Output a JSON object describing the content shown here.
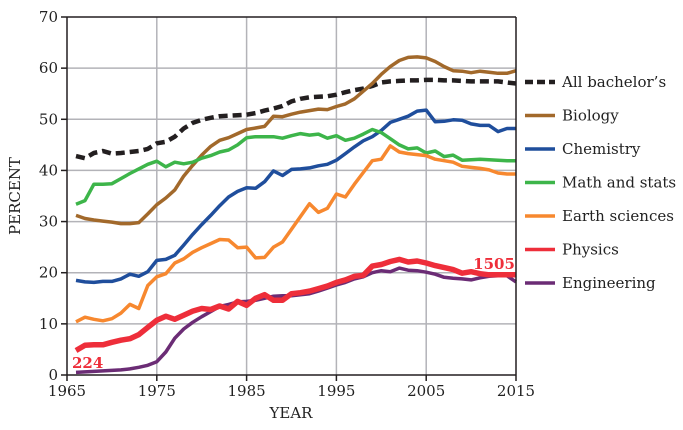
{
  "chart_data": {
    "type": "line",
    "title": "",
    "xlabel": "YEAR",
    "ylabel": "PERCENT",
    "xlim": [
      1965,
      2015
    ],
    "ylim": [
      0,
      70
    ],
    "xticks": [
      1965,
      1975,
      1985,
      1995,
      2005,
      2015
    ],
    "yticks": [
      0,
      10,
      20,
      30,
      40,
      50,
      60,
      70
    ],
    "grid": true,
    "legend": "right",
    "series": [
      {
        "name": "All bachelor’s",
        "color": "#231f20",
        "dashed": true,
        "x": [
          1966,
          1967,
          1968,
          1969,
          1970,
          1971,
          1972,
          1973,
          1974,
          1975,
          1976,
          1977,
          1978,
          1979,
          1980,
          1981,
          1982,
          1983,
          1984,
          1985,
          1986,
          1987,
          1988,
          1989,
          1990,
          1991,
          1992,
          1993,
          1994,
          1995,
          1996,
          1997,
          1998,
          1999,
          2000,
          2001,
          2002,
          2003,
          2004,
          2005,
          2006,
          2007,
          2008,
          2009,
          2010,
          2011,
          2012,
          2013,
          2014,
          2015
        ],
        "y": [
          42.8,
          42.4,
          43.4,
          43.8,
          43.3,
          43.4,
          43.6,
          43.8,
          44.2,
          45.3,
          45.6,
          46.6,
          48.2,
          49.3,
          49.9,
          50.3,
          50.6,
          50.7,
          50.8,
          50.9,
          51.2,
          51.7,
          52.1,
          52.6,
          53.5,
          54.0,
          54.3,
          54.4,
          54.5,
          54.8,
          55.3,
          55.7,
          56.0,
          56.5,
          57.2,
          57.4,
          57.5,
          57.6,
          57.6,
          57.7,
          57.7,
          57.6,
          57.6,
          57.5,
          57.4,
          57.4,
          57.4,
          57.4,
          57.2,
          57.0
        ]
      },
      {
        "name": "Biology",
        "color": "#a2692b",
        "dashed": false,
        "x": [
          1966,
          1967,
          1968,
          1969,
          1970,
          1971,
          1972,
          1973,
          1974,
          1975,
          1976,
          1977,
          1978,
          1979,
          1980,
          1981,
          1982,
          1983,
          1984,
          1985,
          1986,
          1987,
          1988,
          1989,
          1990,
          1991,
          1992,
          1993,
          1994,
          1995,
          1996,
          1997,
          1998,
          1999,
          2000,
          2001,
          2002,
          2003,
          2004,
          2005,
          2006,
          2007,
          2008,
          2009,
          2010,
          2011,
          2012,
          2013,
          2014,
          2015
        ],
        "y": [
          31.2,
          30.6,
          30.3,
          30.1,
          29.9,
          29.6,
          29.6,
          29.8,
          31.5,
          33.3,
          34.6,
          36.2,
          38.9,
          41.0,
          43.0,
          44.7,
          45.9,
          46.4,
          47.2,
          48.0,
          48.3,
          48.6,
          50.6,
          50.5,
          51.0,
          51.4,
          51.7,
          52.0,
          51.9,
          52.5,
          53.0,
          54.0,
          55.5,
          57.0,
          58.8,
          60.3,
          61.5,
          62.1,
          62.2,
          62.0,
          61.3,
          60.3,
          59.5,
          59.4,
          59.1,
          59.4,
          59.2,
          59.0,
          59.0,
          59.5
        ]
      },
      {
        "name": "Chemistry",
        "color": "#1f4e9c",
        "dashed": false,
        "x": [
          1966,
          1967,
          1968,
          1969,
          1970,
          1971,
          1972,
          1973,
          1974,
          1975,
          1976,
          1977,
          1978,
          1979,
          1980,
          1981,
          1982,
          1983,
          1984,
          1985,
          1986,
          1987,
          1988,
          1989,
          1990,
          1991,
          1992,
          1993,
          1994,
          1995,
          1996,
          1997,
          1998,
          1999,
          2000,
          2001,
          2002,
          2003,
          2004,
          2005,
          2006,
          2007,
          2008,
          2009,
          2010,
          2011,
          2012,
          2013,
          2014,
          2015
        ],
        "y": [
          18.5,
          18.2,
          18.1,
          18.3,
          18.3,
          18.8,
          19.7,
          19.3,
          20.2,
          22.4,
          22.6,
          23.4,
          25.4,
          27.5,
          29.4,
          31.2,
          33.1,
          34.8,
          35.9,
          36.6,
          36.5,
          37.8,
          39.9,
          39.0,
          40.2,
          40.3,
          40.5,
          40.9,
          41.2,
          42.0,
          43.3,
          44.6,
          45.8,
          46.6,
          47.8,
          49.4,
          50.0,
          50.6,
          51.6,
          51.8,
          49.5,
          49.6,
          49.9,
          49.8,
          49.1,
          48.8,
          48.8,
          47.6,
          48.2,
          48.2
        ]
      },
      {
        "name": "Math and stats",
        "color": "#3db54a",
        "dashed": false,
        "x": [
          1966,
          1967,
          1968,
          1969,
          1970,
          1971,
          1972,
          1973,
          1974,
          1975,
          1976,
          1977,
          1978,
          1979,
          1980,
          1981,
          1982,
          1983,
          1984,
          1985,
          1986,
          1987,
          1988,
          1989,
          1990,
          1991,
          1992,
          1993,
          1994,
          1995,
          1996,
          1997,
          1998,
          1999,
          2000,
          2001,
          2002,
          2003,
          2004,
          2005,
          2006,
          2007,
          2008,
          2009,
          2010,
          2011,
          2012,
          2013,
          2014,
          2015
        ],
        "y": [
          33.4,
          34.1,
          37.3,
          37.3,
          37.4,
          38.4,
          39.4,
          40.3,
          41.2,
          41.8,
          40.7,
          41.6,
          41.3,
          41.6,
          42.4,
          42.9,
          43.6,
          44.0,
          45.0,
          46.4,
          46.6,
          46.6,
          46.6,
          46.3,
          46.8,
          47.2,
          46.9,
          47.1,
          46.3,
          46.8,
          45.9,
          46.3,
          47.1,
          48.0,
          47.4,
          46.2,
          45.0,
          44.2,
          44.4,
          43.4,
          43.8,
          42.7,
          43.0,
          42.0,
          42.1,
          42.2,
          42.1,
          42.0,
          41.9,
          41.9
        ]
      },
      {
        "name": "Earth sciences",
        "color": "#f7882f",
        "dashed": false,
        "x": [
          1966,
          1967,
          1968,
          1969,
          1970,
          1971,
          1972,
          1973,
          1974,
          1975,
          1976,
          1977,
          1978,
          1979,
          1980,
          1981,
          1982,
          1983,
          1984,
          1985,
          1986,
          1987,
          1988,
          1989,
          1990,
          1991,
          1992,
          1993,
          1994,
          1995,
          1996,
          1997,
          1998,
          1999,
          2000,
          2001,
          2002,
          2003,
          2004,
          2005,
          2006,
          2007,
          2008,
          2009,
          2010,
          2011,
          2012,
          2013,
          2014,
          2015
        ],
        "y": [
          10.4,
          11.3,
          10.9,
          10.6,
          11.0,
          12.1,
          13.8,
          13.0,
          17.5,
          19.2,
          19.8,
          21.9,
          22.7,
          24.0,
          24.9,
          25.7,
          26.5,
          26.4,
          24.9,
          25.0,
          22.9,
          23.0,
          25.0,
          26.0,
          28.5,
          31.0,
          33.5,
          31.8,
          32.6,
          35.4,
          34.8,
          37.3,
          39.6,
          41.9,
          42.2,
          44.8,
          43.6,
          43.3,
          43.1,
          42.9,
          42.2,
          41.9,
          41.6,
          40.8,
          40.6,
          40.4,
          40.1,
          39.5,
          39.3,
          39.3
        ]
      },
      {
        "name": "Physics",
        "color": "#ee2e3a",
        "dashed": false,
        "x": [
          1966,
          1967,
          1968,
          1969,
          1970,
          1971,
          1972,
          1973,
          1974,
          1975,
          1976,
          1977,
          1978,
          1979,
          1980,
          1981,
          1982,
          1983,
          1984,
          1985,
          1986,
          1987,
          1988,
          1989,
          1990,
          1991,
          1992,
          1993,
          1994,
          1995,
          1996,
          1997,
          1998,
          1999,
          2000,
          2001,
          2002,
          2003,
          2004,
          2005,
          2006,
          2007,
          2008,
          2009,
          2010,
          2011,
          2012,
          2013,
          2014,
          2015
        ],
        "y": [
          4.8,
          5.8,
          5.9,
          5.9,
          6.4,
          6.8,
          7.1,
          7.9,
          9.3,
          10.7,
          11.5,
          10.9,
          11.7,
          12.5,
          13.0,
          12.8,
          13.5,
          12.9,
          14.4,
          13.6,
          15.0,
          15.7,
          14.6,
          14.6,
          15.9,
          16.1,
          16.4,
          16.9,
          17.4,
          18.1,
          18.6,
          19.3,
          19.5,
          21.3,
          21.6,
          22.2,
          22.6,
          22.1,
          22.3,
          21.9,
          21.4,
          21.0,
          20.6,
          19.9,
          20.2,
          19.8,
          19.6,
          19.6,
          19.6,
          19.6
        ]
      },
      {
        "name": "Engineering",
        "color": "#6b2c75",
        "dashed": false,
        "x": [
          1966,
          1967,
          1968,
          1969,
          1970,
          1971,
          1972,
          1973,
          1974,
          1975,
          1976,
          1977,
          1978,
          1979,
          1980,
          1981,
          1982,
          1983,
          1984,
          1985,
          1986,
          1987,
          1988,
          1989,
          1990,
          1991,
          1992,
          1993,
          1994,
          1995,
          1996,
          1997,
          1998,
          1999,
          2000,
          2001,
          2002,
          2003,
          2004,
          2005,
          2006,
          2007,
          2008,
          2009,
          2010,
          2011,
          2012,
          2013,
          2014,
          2015
        ],
        "y": [
          0.5,
          0.6,
          0.7,
          0.8,
          0.9,
          1.0,
          1.2,
          1.5,
          1.9,
          2.6,
          4.5,
          7.2,
          9.0,
          10.3,
          11.4,
          12.4,
          13.4,
          13.8,
          14.3,
          14.4,
          14.6,
          15.0,
          15.4,
          15.5,
          15.5,
          15.7,
          15.9,
          16.4,
          17.0,
          17.6,
          18.1,
          18.8,
          19.2,
          20.0,
          20.4,
          20.2,
          20.9,
          20.5,
          20.4,
          20.1,
          19.7,
          19.1,
          18.9,
          18.8,
          18.6,
          19.0,
          19.3,
          19.4,
          19.4,
          18.2
        ]
      }
    ],
    "annotations": [
      {
        "text": "224",
        "x": 1966,
        "y": 2.3,
        "color": "#ee2e3a",
        "refers_to": "Physics"
      },
      {
        "text": "1505",
        "x": 2013,
        "y": 21.7,
        "color": "#ee2e3a",
        "refers_to": "Physics"
      }
    ]
  }
}
